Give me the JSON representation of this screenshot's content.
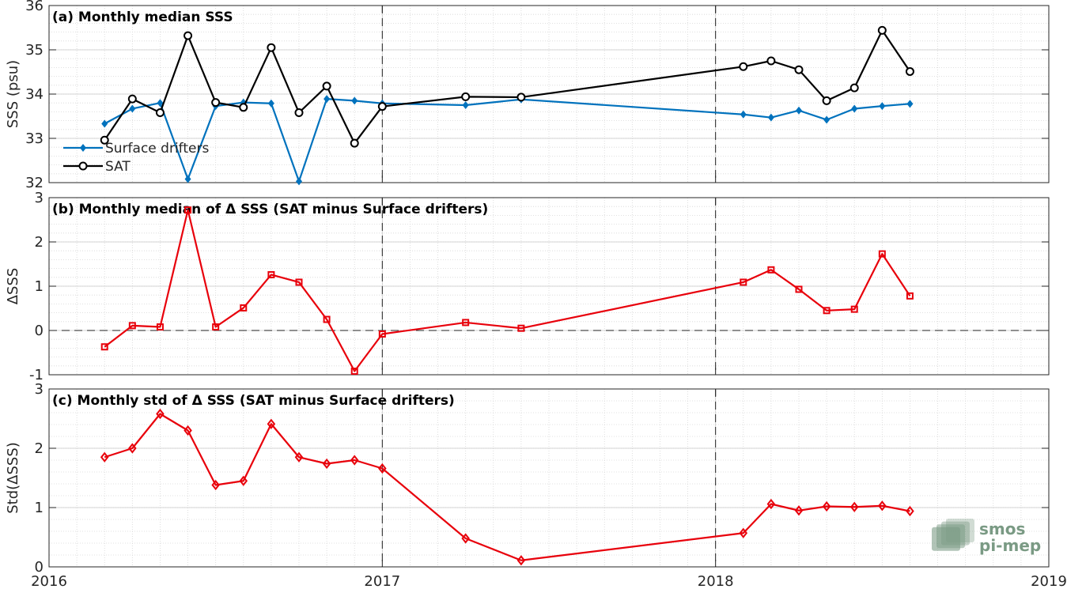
{
  "figure": {
    "xlim": [
      2016,
      2019
    ],
    "xticks": [
      2016,
      2017,
      2018,
      2019
    ],
    "xtick_labels": [
      "2016",
      "2017",
      "2018",
      "2019"
    ],
    "vlines": [
      2017,
      2018
    ]
  },
  "chart_data": [
    {
      "type": "line",
      "title": "(a) Monthly median SSS",
      "ylabel": "SSS (psu)",
      "ylim": [
        32,
        36
      ],
      "yticks": [
        32,
        33,
        34,
        35,
        36
      ],
      "grid": true,
      "legend_position": "lower-left",
      "x": [
        "2016-03",
        "2016-04",
        "2016-05",
        "2016-06",
        "2016-07",
        "2016-08",
        "2016-09",
        "2016-10",
        "2016-11",
        "2016-12",
        "2017-01",
        "2017-04",
        "2017-06",
        "2018-02",
        "2018-03",
        "2018-04",
        "2018-05",
        "2018-06",
        "2018-07",
        "2018-08"
      ],
      "series": [
        {
          "name": "Surface drifters",
          "color": "#0072BD",
          "marker": "diamond",
          "values": [
            33.33,
            33.67,
            33.8,
            32.08,
            33.73,
            33.81,
            33.79,
            32.03,
            33.89,
            33.85,
            33.79,
            33.75,
            33.88,
            33.54,
            33.47,
            33.63,
            33.42,
            33.67,
            33.73,
            33.78
          ]
        },
        {
          "name": "SAT",
          "color": "#000000",
          "marker": "circle",
          "values": [
            32.96,
            33.89,
            33.58,
            35.32,
            33.81,
            33.7,
            35.05,
            33.58,
            34.18,
            32.89,
            33.72,
            33.94,
            33.93,
            34.62,
            34.75,
            34.55,
            33.85,
            34.14,
            35.44,
            34.51
          ]
        }
      ]
    },
    {
      "type": "line",
      "title": "(b) Monthly median of Δ SSS (SAT minus Surface drifters)",
      "ylabel": "ΔSSS",
      "ylim": [
        -1,
        3
      ],
      "yticks": [
        -1,
        0,
        1,
        2,
        3
      ],
      "grid": true,
      "zero_line": true,
      "x": [
        "2016-03",
        "2016-04",
        "2016-05",
        "2016-06",
        "2016-07",
        "2016-08",
        "2016-09",
        "2016-10",
        "2016-11",
        "2016-12",
        "2017-01",
        "2017-04",
        "2017-06",
        "2018-02",
        "2018-03",
        "2018-04",
        "2018-05",
        "2018-06",
        "2018-07",
        "2018-08"
      ],
      "series": [
        {
          "name": "",
          "color": "#E8000B",
          "marker": "square",
          "values": [
            -0.37,
            0.11,
            0.08,
            2.72,
            0.08,
            0.51,
            1.26,
            1.09,
            0.25,
            -0.92,
            -0.08,
            0.18,
            0.05,
            1.09,
            1.37,
            0.93,
            0.45,
            0.48,
            1.73,
            0.78
          ]
        }
      ]
    },
    {
      "type": "line",
      "title": "(c) Monthly std of Δ SSS (SAT minus Surface drifters)",
      "ylabel": "Std(ΔSSS)",
      "ylim": [
        0,
        3
      ],
      "yticks": [
        0,
        1,
        2,
        3
      ],
      "grid": true,
      "x": [
        "2016-03",
        "2016-04",
        "2016-05",
        "2016-06",
        "2016-07",
        "2016-08",
        "2016-09",
        "2016-10",
        "2016-11",
        "2016-12",
        "2017-01",
        "2017-04",
        "2017-06",
        "2018-02",
        "2018-03",
        "2018-04",
        "2018-05",
        "2018-06",
        "2018-07",
        "2018-08"
      ],
      "series": [
        {
          "name": "",
          "color": "#E8000B",
          "marker": "diamond",
          "values": [
            1.85,
            2.0,
            2.58,
            2.3,
            1.38,
            1.45,
            2.41,
            1.85,
            1.74,
            1.8,
            1.66,
            0.48,
            0.11,
            0.57,
            1.06,
            0.95,
            1.02,
            1.01,
            1.03,
            0.94
          ]
        }
      ]
    }
  ],
  "logo": {
    "line1": "smos",
    "line2": "pi-mep",
    "color": "#7a9a84"
  }
}
